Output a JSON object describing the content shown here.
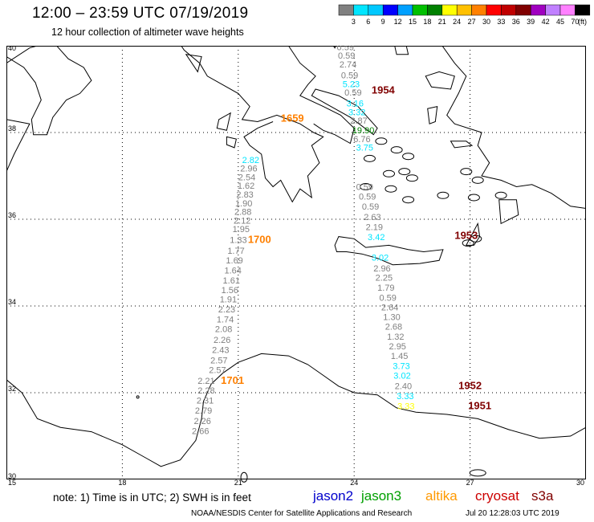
{
  "title": "12:00 – 23:59 UTC 07/19/2019",
  "subtitle": "12 hour collection of altimeter wave heights",
  "colorbar": {
    "unit": "(ft)",
    "colors": [
      "#808080",
      "#00e5ff",
      "#00c8ff",
      "#0000ff",
      "#00a0ff",
      "#00c000",
      "#008000",
      "#ffff00",
      "#ffc000",
      "#ff8000",
      "#ff0000",
      "#c00000",
      "#800000",
      "#a000c0",
      "#c080ff",
      "#ff80ff",
      "#000000"
    ],
    "labels": [
      "3",
      "6",
      "9",
      "12",
      "15",
      "18",
      "21",
      "24",
      "27",
      "30",
      "33",
      "36",
      "39",
      "42",
      "45",
      "70"
    ]
  },
  "map": {
    "lat_ticks": [
      "40",
      "38",
      "36",
      "34",
      "32",
      "30"
    ],
    "lon_ticks": [
      "15",
      "18",
      "21",
      "24",
      "27",
      "30"
    ],
    "land_color": "#ffffff",
    "coast_color": "#000000",
    "grid_color": "#000000"
  },
  "tracks": [
    {
      "name": "cryosat-1954",
      "color": "#808080",
      "time_label": {
        "text": "1954",
        "color": "#800000",
        "lat": 38.9,
        "lon": 24.45
      },
      "points": [
        {
          "v": "0.59",
          "lat": 39.9,
          "lon": 23.55,
          "c": "#808080"
        },
        {
          "v": "0.59",
          "lat": 39.7,
          "lon": 23.58,
          "c": "#808080"
        },
        {
          "v": "2.74",
          "lat": 39.5,
          "lon": 23.62,
          "c": "#808080"
        },
        {
          "v": "0.59",
          "lat": 39.25,
          "lon": 23.66,
          "c": "#808080"
        },
        {
          "v": "5.23",
          "lat": 39.05,
          "lon": 23.7,
          "c": "#00e5ff"
        },
        {
          "v": "0.59",
          "lat": 38.85,
          "lon": 23.75,
          "c": "#808080"
        },
        {
          "v": "3.16",
          "lat": 38.6,
          "lon": 23.8,
          "c": "#00e5ff"
        },
        {
          "v": "3.32",
          "lat": 38.4,
          "lon": 23.85,
          "c": "#00e5ff"
        },
        {
          "v": "2.87",
          "lat": 38.2,
          "lon": 23.9,
          "c": "#808080"
        },
        {
          "v": "19.90",
          "lat": 37.98,
          "lon": 23.95,
          "c": "#008000"
        },
        {
          "v": "6.76",
          "lat": 37.78,
          "lon": 23.98,
          "c": "#808080"
        },
        {
          "v": "3.75",
          "lat": 37.58,
          "lon": 24.05,
          "c": "#00e5ff"
        },
        {
          "v": "0.59",
          "lat": 36.68,
          "lon": 24.05,
          "c": "#808080"
        },
        {
          "v": "0.59",
          "lat": 36.45,
          "lon": 24.12,
          "c": "#808080"
        },
        {
          "v": "0.59",
          "lat": 36.22,
          "lon": 24.2,
          "c": "#808080"
        },
        {
          "v": "2.63",
          "lat": 35.98,
          "lon": 24.25,
          "c": "#808080"
        },
        {
          "v": "2.19",
          "lat": 35.75,
          "lon": 24.3,
          "c": "#808080"
        },
        {
          "v": "3.42",
          "lat": 35.52,
          "lon": 24.35,
          "c": "#00e5ff"
        },
        {
          "v": "3.02",
          "lat": 35.05,
          "lon": 24.45,
          "c": "#00e5ff"
        },
        {
          "v": "2.96",
          "lat": 34.8,
          "lon": 24.5,
          "c": "#808080"
        },
        {
          "v": "2.25",
          "lat": 34.58,
          "lon": 24.55,
          "c": "#808080"
        },
        {
          "v": "1.79",
          "lat": 34.35,
          "lon": 24.6,
          "c": "#808080"
        },
        {
          "v": "0.59",
          "lat": 34.12,
          "lon": 24.65,
          "c": "#808080"
        },
        {
          "v": "2.64",
          "lat": 33.9,
          "lon": 24.7,
          "c": "#808080"
        },
        {
          "v": "1.30",
          "lat": 33.68,
          "lon": 24.75,
          "c": "#808080"
        },
        {
          "v": "2.68",
          "lat": 33.45,
          "lon": 24.8,
          "c": "#808080"
        },
        {
          "v": "1.32",
          "lat": 33.22,
          "lon": 24.85,
          "c": "#808080"
        },
        {
          "v": "2.95",
          "lat": 33.0,
          "lon": 24.9,
          "c": "#808080"
        },
        {
          "v": "1.45",
          "lat": 32.78,
          "lon": 24.95,
          "c": "#808080"
        },
        {
          "v": "3.73",
          "lat": 32.55,
          "lon": 25.0,
          "c": "#00e5ff"
        },
        {
          "v": "3.02",
          "lat": 32.32,
          "lon": 25.02,
          "c": "#00e5ff"
        },
        {
          "v": "2.40",
          "lat": 32.08,
          "lon": 25.05,
          "c": "#808080"
        },
        {
          "v": "3.33",
          "lat": 31.85,
          "lon": 25.1,
          "c": "#00e5ff"
        },
        {
          "v": "3.33",
          "lat": 31.62,
          "lon": 25.12,
          "c": "#ffff00"
        }
      ]
    },
    {
      "name": "altika-1700",
      "color": "#808080",
      "time_label": {
        "text": "1700",
        "color": "#ff8000",
        "lat": 35.45,
        "lon": 21.25
      },
      "points": [
        {
          "v": "2.82",
          "lat": 37.3,
          "lon": 21.1,
          "c": "#00e5ff"
        },
        {
          "v": "2.96",
          "lat": 37.1,
          "lon": 21.05,
          "c": "#808080"
        },
        {
          "v": "2.54",
          "lat": 36.9,
          "lon": 21.0,
          "c": "#808080"
        },
        {
          "v": "1.62",
          "lat": 36.7,
          "lon": 20.98,
          "c": "#808080"
        },
        {
          "v": "2.83",
          "lat": 36.5,
          "lon": 20.95,
          "c": "#808080"
        },
        {
          "v": "1.90",
          "lat": 36.3,
          "lon": 20.92,
          "c": "#808080"
        },
        {
          "v": "2.88",
          "lat": 36.1,
          "lon": 20.9,
          "c": "#808080"
        },
        {
          "v": "2.12",
          "lat": 35.9,
          "lon": 20.88,
          "c": "#808080"
        },
        {
          "v": "1.95",
          "lat": 35.7,
          "lon": 20.85,
          "c": "#808080"
        },
        {
          "v": "1.33",
          "lat": 35.45,
          "lon": 20.78,
          "c": "#808080"
        },
        {
          "v": "1.77",
          "lat": 35.2,
          "lon": 20.72,
          "c": "#808080"
        },
        {
          "v": "1.69",
          "lat": 34.98,
          "lon": 20.68,
          "c": "#808080"
        },
        {
          "v": "1.64",
          "lat": 34.75,
          "lon": 20.64,
          "c": "#808080"
        },
        {
          "v": "1.61",
          "lat": 34.52,
          "lon": 20.6,
          "c": "#808080"
        },
        {
          "v": "1.56",
          "lat": 34.3,
          "lon": 20.56,
          "c": "#808080"
        },
        {
          "v": "1.91",
          "lat": 34.08,
          "lon": 20.52,
          "c": "#808080"
        },
        {
          "v": "2.23",
          "lat": 33.85,
          "lon": 20.48,
          "c": "#808080"
        },
        {
          "v": "1.74",
          "lat": 33.62,
          "lon": 20.44,
          "c": "#808080"
        },
        {
          "v": "2.08",
          "lat": 33.4,
          "lon": 20.4,
          "c": "#808080"
        },
        {
          "v": "2.26",
          "lat": 33.15,
          "lon": 20.36,
          "c": "#808080"
        },
        {
          "v": "2.43",
          "lat": 32.92,
          "lon": 20.32,
          "c": "#808080"
        },
        {
          "v": "2.57",
          "lat": 32.68,
          "lon": 20.28,
          "c": "#808080"
        },
        {
          "v": "2.57",
          "lat": 32.45,
          "lon": 20.24,
          "c": "#808080"
        }
      ]
    },
    {
      "name": "altika-1701",
      "color": "#808080",
      "time_label": {
        "text": "1701",
        "color": "#ff8000",
        "lat": 32.2,
        "lon": 20.55
      },
      "points": [
        {
          "v": "2.21",
          "lat": 32.2,
          "lon": 19.95,
          "c": "#808080"
        },
        {
          "v": "2.28",
          "lat": 31.98,
          "lon": 19.95,
          "c": "#808080"
        },
        {
          "v": "2.31",
          "lat": 31.75,
          "lon": 19.92,
          "c": "#808080"
        },
        {
          "v": "2.79",
          "lat": 31.52,
          "lon": 19.88,
          "c": "#808080"
        },
        {
          "v": "2.26",
          "lat": 31.28,
          "lon": 19.85,
          "c": "#808080"
        },
        {
          "v": "2.66",
          "lat": 31.05,
          "lon": 19.8,
          "c": "#808080"
        }
      ]
    },
    {
      "name": "cryosat-1953",
      "color": "#808080",
      "time_label": {
        "text": "1953",
        "color": "#800000",
        "lat": 35.55,
        "lon": 26.6
      },
      "points": []
    },
    {
      "name": "cryosat-1952",
      "color": "#808080",
      "time_label": {
        "text": "1952",
        "color": "#800000",
        "lat": 32.08,
        "lon": 26.7
      },
      "points": []
    },
    {
      "name": "cryosat-1951",
      "color": "#800000",
      "time_label": {
        "text": "1951",
        "color": "#800000",
        "lat": 31.62,
        "lon": 26.95
      },
      "points": []
    },
    {
      "name": "altika-1659",
      "color": "#ff8000",
      "time_label": {
        "text": "1659",
        "color": "#ff8000",
        "lat": 38.25,
        "lon": 22.1
      },
      "points": []
    }
  ],
  "note": "note:  1) Time is in UTC;  2) SWH is in feet",
  "legend": [
    {
      "name": "jason2",
      "color": "#0000cc"
    },
    {
      "name": "jason3",
      "color": "#00a000"
    },
    {
      "name": "altika",
      "color": "#ff9900"
    },
    {
      "name": "cryosat",
      "color": "#cc0000"
    },
    {
      "name": "s3a",
      "color": "#800000"
    }
  ],
  "footer": "NOAA/NESDIS Center for Satellite Applications and Research",
  "footer_time": "Jul 20 12:28:03 UTC 2019"
}
